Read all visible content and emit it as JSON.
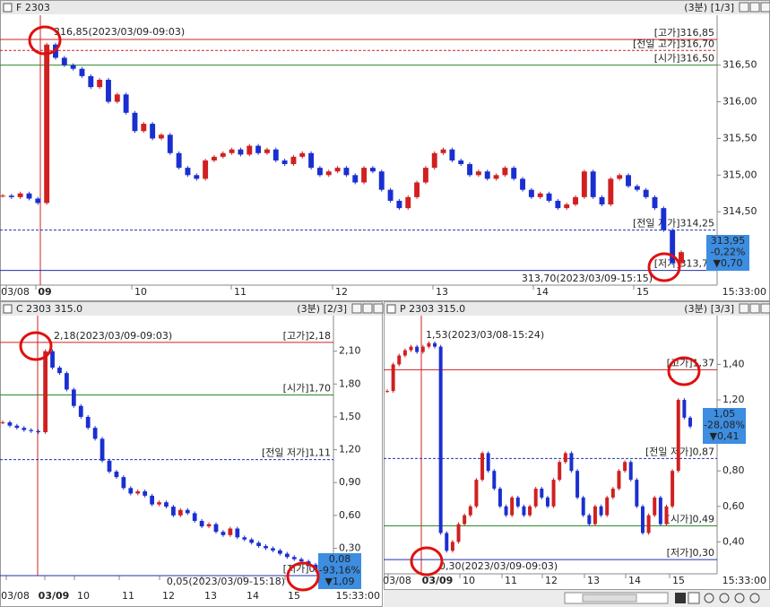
{
  "panels": [
    {
      "title": "F 2303",
      "interval": "(3분)",
      "page": "[1/3]",
      "ylim": [
        313.5,
        317.18
      ],
      "yticks": [
        {
          "value": 316.5,
          "label": "316,50"
        },
        {
          "value": 316.0,
          "label": "316,00"
        },
        {
          "value": 315.5,
          "label": "315,50"
        },
        {
          "value": 315.0,
          "label": "315,00"
        },
        {
          "value": 314.5,
          "label": "314,50"
        }
      ],
      "x_labels": [
        "03/08",
        "09",
        "10",
        "11",
        "12",
        "13",
        "14",
        "15"
      ],
      "time_label": "15:33:00",
      "ref_lines": [
        {
          "label": "[고가]316,85",
          "value": 316.85,
          "color": "#d02020",
          "dash": false
        },
        {
          "label": "[전일 고가]316,70",
          "value": 316.7,
          "color": "#d02020",
          "dash": true
        },
        {
          "label": "[시가]316,50",
          "value": 316.5,
          "color": "#2a8a2a",
          "dash": false
        },
        {
          "label": "[전일 저가]314,25",
          "value": 314.25,
          "color": "#2030b0",
          "dash": true
        },
        {
          "label": "[저가]313,70",
          "value": 313.7,
          "color": "#2030b0",
          "dash": false
        }
      ],
      "annotations": [
        "316,85(2023/03/09-09:03)",
        "313,70(2023/03/09-15:15)"
      ],
      "price_box": [
        "313,95",
        "-0,22%",
        "▼0,70"
      ],
      "values": [
        314.72,
        314.7,
        314.75,
        314.68,
        314.62,
        316.78,
        316.6,
        316.5,
        316.45,
        316.35,
        316.2,
        316.3,
        316.0,
        316.1,
        315.85,
        315.6,
        315.7,
        315.5,
        315.55,
        315.3,
        315.1,
        315.0,
        314.95,
        315.2,
        315.25,
        315.3,
        315.35,
        315.28,
        315.4,
        315.3,
        315.35,
        315.2,
        315.15,
        315.25,
        315.3,
        315.1,
        315.0,
        315.05,
        315.1,
        315.0,
        314.9,
        315.1,
        315.05,
        314.8,
        314.65,
        314.55,
        314.7,
        314.9,
        315.1,
        315.3,
        315.35,
        315.2,
        315.15,
        315.0,
        315.05,
        314.95,
        315.0,
        315.1,
        314.95,
        314.8,
        314.7,
        314.75,
        314.65,
        314.55,
        314.6,
        314.7,
        315.05,
        314.7,
        314.6,
        314.95,
        315.0,
        314.85,
        314.8,
        314.7,
        314.55,
        314.25,
        313.8,
        313.95
      ]
    },
    {
      "title": "C 2303 315.0",
      "interval": "(3분)",
      "page": "[2/3]",
      "ylim": [
        0.05,
        2.425
      ],
      "yticks": [
        {
          "value": 2.1,
          "label": "2,10"
        },
        {
          "value": 1.8,
          "label": "1,80"
        },
        {
          "value": 1.5,
          "label": "1,50"
        },
        {
          "value": 1.2,
          "label": "1,20"
        },
        {
          "value": 0.9,
          "label": "0,90"
        },
        {
          "value": 0.6,
          "label": "0,60"
        },
        {
          "value": 0.3,
          "label": "0,30"
        }
      ],
      "x_labels": [
        "03/08",
        "03/09",
        "10",
        "11",
        "12",
        "13",
        "14",
        "15"
      ],
      "time_label": "15:33:00",
      "ref_lines": [
        {
          "label": "[고가]2,18",
          "value": 2.18,
          "color": "#d02020",
          "dash": false
        },
        {
          "label": "[시가]1,70",
          "value": 1.7,
          "color": "#2a8a2a",
          "dash": false
        },
        {
          "label": "[전일 저가]1,11",
          "value": 1.11,
          "color": "#2030b0",
          "dash": true
        },
        {
          "label": "[저가]0,05",
          "value": 0.05,
          "color": "#2030b0",
          "dash": false
        }
      ],
      "annotations": [
        "2,18(2023/03/09-09:03)",
        "0,05(2023/03/09-15:18)"
      ],
      "price_box": [
        "0,08",
        "-93,16%",
        "▼1,09"
      ],
      "values": [
        1.45,
        1.42,
        1.4,
        1.38,
        1.37,
        1.36,
        2.1,
        1.95,
        1.9,
        1.75,
        1.6,
        1.5,
        1.4,
        1.3,
        1.1,
        1.0,
        0.95,
        0.85,
        0.8,
        0.82,
        0.78,
        0.7,
        0.72,
        0.68,
        0.6,
        0.65,
        0.62,
        0.55,
        0.5,
        0.52,
        0.45,
        0.42,
        0.48,
        0.4,
        0.38,
        0.35,
        0.32,
        0.3,
        0.28,
        0.25,
        0.22,
        0.2,
        0.18,
        0.15,
        0.1,
        0.08
      ]
    },
    {
      "title": "P 2303 315.0",
      "interval": "(3분)",
      "page": "[3/3]",
      "ylim": [
        0.22,
        1.675
      ],
      "yticks": [
        {
          "value": 1.4,
          "label": "1,40"
        },
        {
          "value": 1.2,
          "label": "1,20"
        },
        {
          "value": 0.8,
          "label": "0,80"
        },
        {
          "value": 0.6,
          "label": "0,60"
        },
        {
          "value": 0.4,
          "label": "0,40"
        }
      ],
      "x_labels": [
        "03/08",
        "03/09",
        "10",
        "11",
        "12",
        "13",
        "14",
        "15"
      ],
      "time_label": "15:33:00",
      "ref_lines": [
        {
          "label": "[고가]1,37",
          "value": 1.37,
          "color": "#d02020",
          "dash": false
        },
        {
          "label": "[전일 저가]0,87",
          "value": 0.87,
          "color": "#2030b0",
          "dash": true
        },
        {
          "label": "[시가]0,49",
          "value": 0.49,
          "color": "#2a8a2a",
          "dash": false
        },
        {
          "label": "[저가]0,30",
          "value": 0.3,
          "color": "#2030b0",
          "dash": false
        }
      ],
      "annotations": [
        "1,53(2023/03/08-15:24)",
        "0,30(2023/03/09-09:03)"
      ],
      "price_box": [
        "1,05",
        "-28,08%",
        "▼0,41"
      ],
      "values": [
        1.25,
        1.4,
        1.45,
        1.48,
        1.5,
        1.47,
        1.5,
        1.52,
        1.5,
        0.45,
        0.35,
        0.4,
        0.5,
        0.55,
        0.6,
        0.75,
        0.9,
        0.8,
        0.7,
        0.6,
        0.55,
        0.65,
        0.6,
        0.55,
        0.6,
        0.7,
        0.65,
        0.6,
        0.75,
        0.85,
        0.9,
        0.8,
        0.65,
        0.55,
        0.5,
        0.6,
        0.55,
        0.65,
        0.7,
        0.8,
        0.85,
        0.75,
        0.6,
        0.45,
        0.55,
        0.65,
        0.5,
        0.6,
        0.8,
        1.2,
        1.1,
        1.05
      ]
    }
  ]
}
